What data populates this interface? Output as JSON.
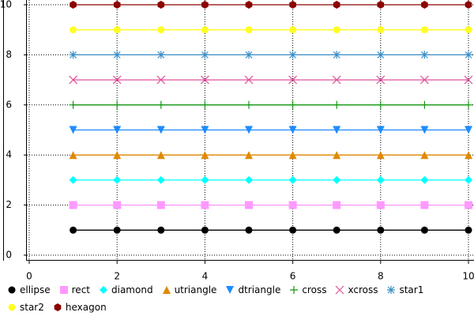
{
  "chart_data": {
    "type": "line",
    "x": [
      1,
      2,
      3,
      4,
      5,
      6,
      7,
      8,
      9,
      10
    ],
    "series": [
      {
        "name": "ellipse",
        "color": "#000000",
        "values": [
          1,
          1,
          1,
          1,
          1,
          1,
          1,
          1,
          1,
          1
        ]
      },
      {
        "name": "rect",
        "color": "#ff99ff",
        "values": [
          2,
          2,
          2,
          2,
          2,
          2,
          2,
          2,
          2,
          2
        ]
      },
      {
        "name": "diamond",
        "color": "#00ffff",
        "values": [
          3,
          3,
          3,
          3,
          3,
          3,
          3,
          3,
          3,
          3
        ]
      },
      {
        "name": "utriangle",
        "color": "#e08a00",
        "values": [
          4,
          4,
          4,
          4,
          4,
          4,
          4,
          4,
          4,
          4
        ]
      },
      {
        "name": "dtriangle",
        "color": "#1e8cff",
        "values": [
          5,
          5,
          5,
          5,
          5,
          5,
          5,
          5,
          5,
          5
        ]
      },
      {
        "name": "cross",
        "color": "#119911",
        "values": [
          6,
          6,
          6,
          6,
          6,
          6,
          6,
          6,
          6,
          6
        ]
      },
      {
        "name": "xcross",
        "color": "#e0509a",
        "values": [
          7,
          7,
          7,
          7,
          7,
          7,
          7,
          7,
          7,
          7
        ]
      },
      {
        "name": "star1",
        "color": "#3a8fc8",
        "values": [
          8,
          8,
          8,
          8,
          8,
          8,
          8,
          8,
          8,
          8
        ]
      },
      {
        "name": "star2",
        "color": "#ffff22",
        "values": [
          9,
          9,
          9,
          9,
          9,
          9,
          9,
          9,
          9,
          9
        ]
      },
      {
        "name": "hexagon",
        "color": "#8b0000",
        "values": [
          10,
          10,
          10,
          10,
          10,
          10,
          10,
          10,
          10,
          10
        ]
      }
    ],
    "xlim": [
      0,
      10
    ],
    "xticks": [
      0,
      2,
      4,
      6,
      8,
      10
    ],
    "ylim": [
      0,
      10
    ],
    "yticks": [
      0,
      2,
      4,
      6,
      8,
      10
    ],
    "grid": true
  }
}
